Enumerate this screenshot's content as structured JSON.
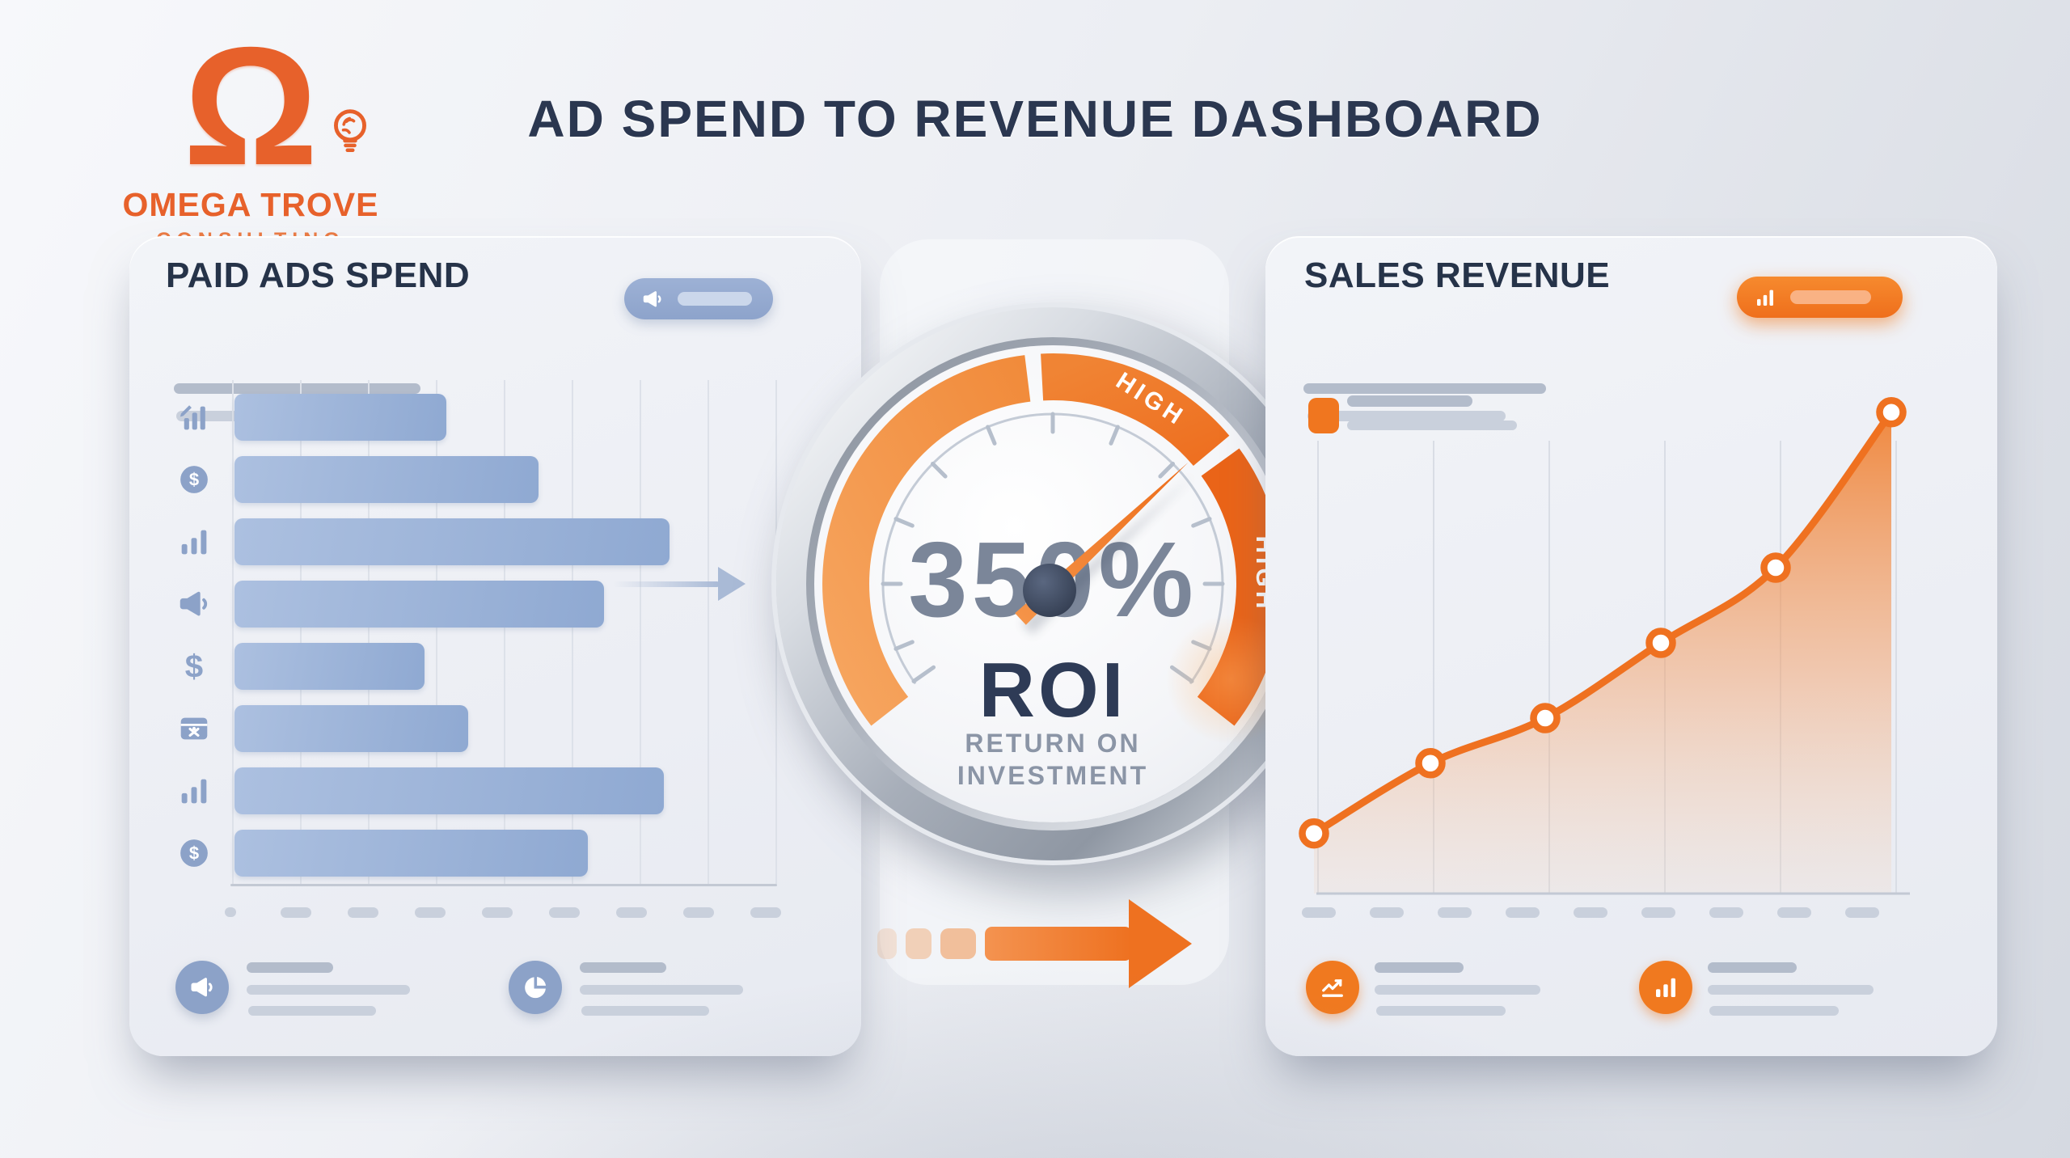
{
  "logo": {
    "symbol": "Ω",
    "company": "OMEGA TROVE",
    "tagline": "CONSULTING"
  },
  "header": {
    "title": "AD SPEND TO REVENUE DASHBOARD"
  },
  "left_panel": {
    "title": "PAID ADS SPEND",
    "badge_icon": "megaphone-icon",
    "row_icons": [
      "chart-growth-icon",
      "dollar-coin-icon",
      "bar-chart-icon",
      "megaphone-icon",
      "dollar-sign-icon",
      "ad-card-icon",
      "bar-chart-icon",
      "dollar-coin-icon"
    ],
    "footer_icons": [
      "megaphone-icon",
      "pie-chart-icon"
    ]
  },
  "gauge": {
    "value": "350%",
    "label": "ROI",
    "sublabel_line1": "RETURN ON",
    "sublabel_line2": "INVESTMENT",
    "zone_label_top": "HIGH",
    "zone_label_right": "HIGH"
  },
  "right_panel": {
    "title": "SALES REVENUE",
    "badge_icon": "bar-chart-icon",
    "footer_icons": [
      "trend-up-icon",
      "bar-chart-icon"
    ]
  },
  "chart_data": [
    {
      "type": "bar",
      "orientation": "horizontal",
      "title": "PAID ADS SPEND",
      "categories": [
        "chart-growth-icon",
        "dollar-coin-icon",
        "bar-chart-icon",
        "megaphone-icon",
        "dollar-sign-icon",
        "ad-card-icon",
        "bar-chart-icon",
        "dollar-coin-icon"
      ],
      "values": [
        39,
        56,
        80,
        68,
        35,
        43,
        79,
        65
      ],
      "unit": "percent_of_axis_width",
      "grid": true,
      "axis_labels_visible": false
    },
    {
      "type": "gauge",
      "title": "RETURN ON INVESTMENT",
      "value": 350,
      "unit": "%",
      "label": "ROI",
      "zones": [
        {
          "label": "HIGH"
        }
      ],
      "needle_angle_deg": 47
    },
    {
      "type": "area",
      "title": "SALES REVENUE",
      "x": [
        1,
        2,
        3,
        4,
        5,
        6
      ],
      "values": [
        12,
        26,
        35,
        50,
        65,
        96
      ],
      "unit": "percent_of_plot_height",
      "grid": true,
      "markers": "open-circle",
      "axis_labels_visible": false
    }
  ],
  "colors": {
    "accent": "#EE7120",
    "accent_deep": "#EA6418",
    "accent_light": "#F5A35E",
    "bar_fill": "#9FB6DB",
    "icon_blue": "#8CA2C8",
    "navy": "#2B3750",
    "gauge_value_gray": "#7B8699",
    "silver": "#C6CBD3"
  }
}
